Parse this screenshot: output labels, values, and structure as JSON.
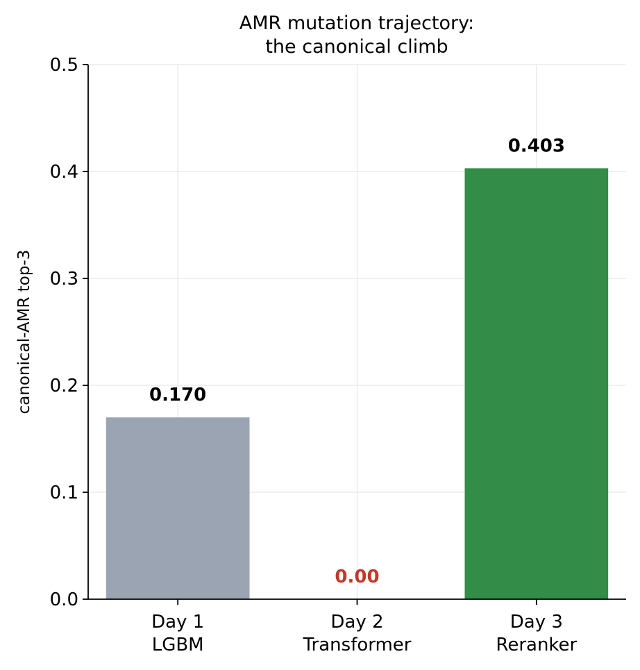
{
  "chart_data": {
    "type": "bar",
    "title_lines": [
      "AMR mutation trajectory:",
      "the canonical climb"
    ],
    "categories": [
      [
        "Day 1",
        "LGBM"
      ],
      [
        "Day 2",
        "Transformer"
      ],
      [
        "Day 3",
        "Reranker"
      ]
    ],
    "values": [
      0.17,
      0.0,
      0.403
    ],
    "value_labels": [
      "0.170",
      "0.00",
      "0.403"
    ],
    "bar_colors": [
      "#9aa4b2",
      "#9aa4b2",
      "#338c47"
    ],
    "label_colors": [
      "#000000",
      "#c0392b",
      "#000000"
    ],
    "xlabel": "",
    "ylabel": "canonical-AMR top-3",
    "ylim": [
      0,
      0.5
    ],
    "yticks": [
      0.0,
      0.1,
      0.2,
      0.3,
      0.4,
      0.5
    ],
    "ytick_labels": [
      "0.0",
      "0.1",
      "0.2",
      "0.3",
      "0.4",
      "0.5"
    ],
    "grid": true,
    "legend": "none"
  }
}
